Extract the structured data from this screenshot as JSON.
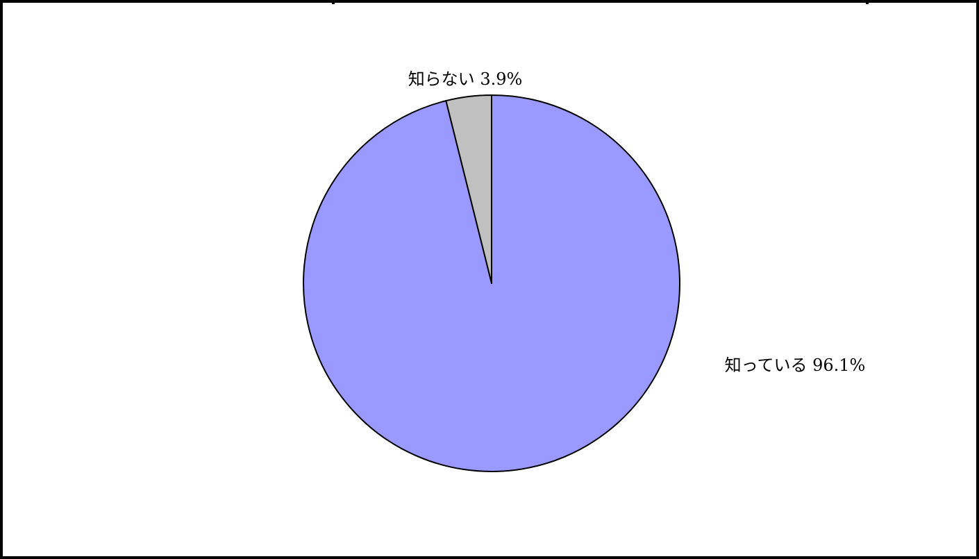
{
  "chart_data": {
    "type": "pie",
    "title": "",
    "start_angle_deg": 0,
    "direction": "counterclockwise",
    "slices": [
      {
        "label": "知らない",
        "value": 3.9,
        "display": "3.9%",
        "color": "#c0c0c0"
      },
      {
        "label": "知っている",
        "value": 96.1,
        "display": "96.1%",
        "color": "#9999ff"
      }
    ],
    "edge_color": "#000000",
    "legend": "none"
  }
}
